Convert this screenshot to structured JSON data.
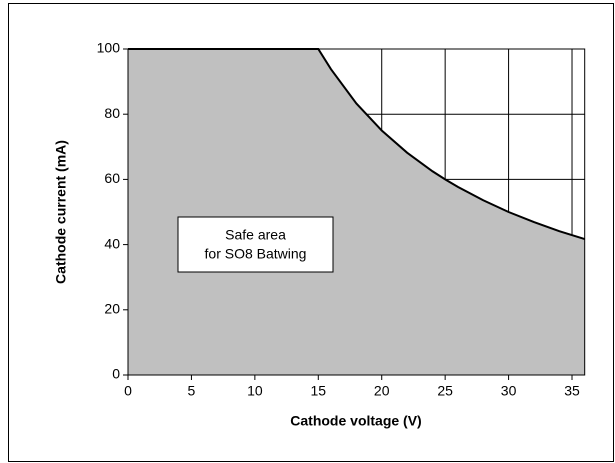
{
  "chart_data": {
    "type": "area",
    "x_label": "Cathode voltage (V)",
    "y_label": "Cathode current (mA)",
    "annotation": [
      "Safe area",
      "for SO8 Batwing"
    ],
    "x": [
      0,
      15,
      16,
      18,
      20,
      22,
      24,
      25,
      26,
      28,
      30,
      32,
      34,
      36
    ],
    "series": [
      {
        "color": "#c0c0c0",
        "values": [
          100,
          100,
          93.8,
          83.3,
          75,
          68.2,
          62.5,
          60,
          57.7,
          53.6,
          50,
          46.9,
          44.1,
          41.7
        ]
      }
    ],
    "xlim": [
      0,
      36
    ],
    "xticks": [
      0,
      5,
      10,
      15,
      20,
      25,
      30,
      35
    ],
    "ylim": [
      0,
      100
    ],
    "yticks": [
      0,
      20,
      40,
      60,
      80,
      100
    ],
    "grid": true
  }
}
